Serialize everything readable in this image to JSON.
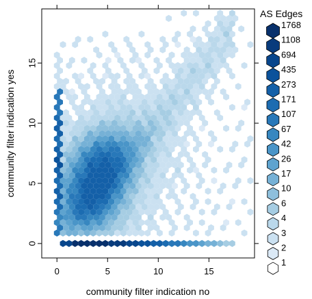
{
  "chart_data": {
    "type": "heatmap",
    "subtype": "hexbin",
    "xlabel": "community filter indication no",
    "ylabel": "community filter indication yes",
    "xlim": [
      -1.5,
      19.5
    ],
    "ylim": [
      -1.2,
      19.5
    ],
    "x_ticks": [
      0,
      5,
      10,
      15
    ],
    "y_ticks": [
      0,
      5,
      10,
      15
    ],
    "legend": {
      "title": "AS Edges",
      "placement": "right",
      "breaks": [
        "1768",
        "1108",
        "694",
        "435",
        "273",
        "171",
        "107",
        "67",
        "42",
        "26",
        "17",
        "10",
        "6",
        "4",
        "3",
        "2",
        "1"
      ],
      "colors": [
        "#08306b",
        "#083b7c",
        "#08468c",
        "#0b529b",
        "#1460a8",
        "#1c6cb1",
        "#2878b9",
        "#3787c0",
        "#4a95c8",
        "#5ea3cf",
        "#76b1d6",
        "#8ebfdc",
        "#a6cde3",
        "#bad8eb",
        "#cbe1f1",
        "#dbe9f6",
        "#ffffff"
      ]
    },
    "color_scheme": "white-to-darkblue sequential",
    "density_summary": [
      {
        "region": "baseline row y=0",
        "x_range": [
          0.5,
          17.5
        ],
        "count_range": [
          17,
          1768
        ],
        "peak_x": 5
      },
      {
        "region": "left column x=0",
        "y_range": [
          0.5,
          12.5
        ],
        "count_range": [
          42,
          435
        ]
      },
      {
        "region": "central cluster",
        "x_center": 4,
        "y_center": 6.5,
        "count_range": [
          67,
          273
        ]
      },
      {
        "region": "diagonal tail",
        "x_range": [
          8,
          17
        ],
        "y_range": [
          8,
          18
        ],
        "count_range": [
          1,
          17
        ]
      }
    ]
  }
}
